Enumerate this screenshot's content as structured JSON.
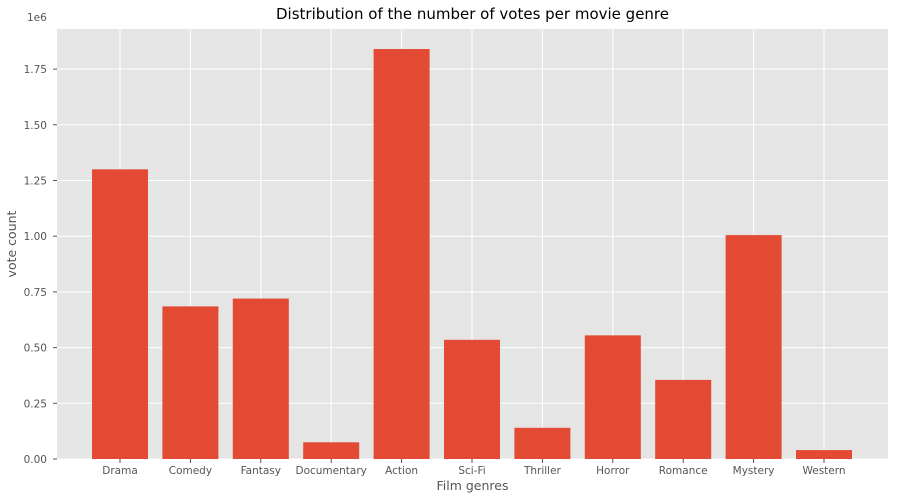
{
  "chart_data": {
    "type": "bar",
    "title": "Distribution of the number of votes per movie genre",
    "xlabel": "Film genres",
    "ylabel": "vote count",
    "y_offset_label": "1e6",
    "categories": [
      "Drama",
      "Comedy",
      "Fantasy",
      "Documentary",
      "Action",
      "Sci-Fi",
      "Thriller",
      "Horror",
      "Romance",
      "Mystery",
      "Western"
    ],
    "values": [
      1.3,
      0.685,
      0.72,
      0.075,
      1.84,
      0.535,
      0.14,
      0.555,
      0.355,
      1.005,
      0.04
    ],
    "value_multiplier": 1000000,
    "ylim": [
      0,
      1.93
    ],
    "yticks": [
      0.0,
      0.25,
      0.5,
      0.75,
      1.0,
      1.25,
      1.5,
      1.75
    ],
    "ytick_labels": [
      "0.00",
      "0.25",
      "0.50",
      "0.75",
      "1.00",
      "1.25",
      "1.50",
      "1.75"
    ],
    "grid": true,
    "style": "ggplot",
    "colors": {
      "bar": "#E24A33",
      "plot_background": "#E5E5E5",
      "grid": "#FFFFFF",
      "text": "#555555"
    }
  }
}
